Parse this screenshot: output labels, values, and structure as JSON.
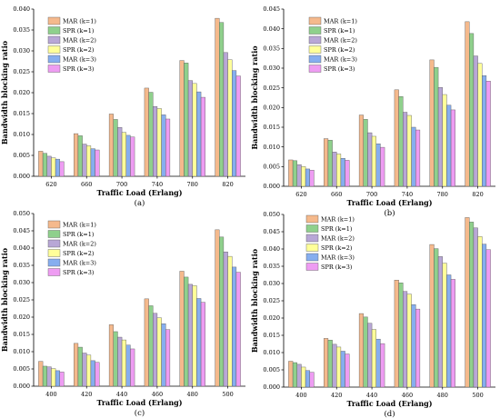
{
  "series_style": [
    {
      "name": "MAR (k=1)",
      "color": "#F5B98C"
    },
    {
      "name": "SPR (k=1)",
      "color": "#8FD08C"
    },
    {
      "name": "MAR (k=2)",
      "color": "#B8A7D6"
    },
    {
      "name": "SPR (k=2)",
      "color": "#FFFF99"
    },
    {
      "name": "MAR (k=3)",
      "color": "#86AEEF"
    },
    {
      "name": "SPR (k=3)",
      "color": "#EE9CF2"
    }
  ],
  "chart_data": [
    {
      "type": "bar",
      "panel_label": "(a)",
      "xlabel": "Traffic Load (Erlang)",
      "ylabel": "Bandwidth blocking ratio",
      "categories": [
        "620",
        "660",
        "700",
        "740",
        "780",
        "820"
      ],
      "ylim": [
        0,
        0.04
      ],
      "yticks": [
        "0.000",
        "0.005",
        "0.010",
        "0.015",
        "0.020",
        "0.025",
        "0.030",
        "0.035",
        "0.040"
      ],
      "legend_position": "top-left",
      "series": [
        {
          "name": "MAR (k=1)",
          "values": [
            0.006,
            0.0102,
            0.0149,
            0.0211,
            0.0277,
            0.0378
          ]
        },
        {
          "name": "SPR (k=1)",
          "values": [
            0.0055,
            0.0097,
            0.0136,
            0.0201,
            0.0271,
            0.0368
          ]
        },
        {
          "name": "MAR (k=2)",
          "values": [
            0.0048,
            0.0077,
            0.0117,
            0.0167,
            0.0229,
            0.0296
          ]
        },
        {
          "name": "SPR (k=2)",
          "values": [
            0.0044,
            0.0073,
            0.0105,
            0.0162,
            0.0222,
            0.0279
          ]
        },
        {
          "name": "MAR (k=3)",
          "values": [
            0.0041,
            0.0066,
            0.0098,
            0.0147,
            0.0202,
            0.0253
          ]
        },
        {
          "name": "SPR (k=3)",
          "values": [
            0.0035,
            0.0063,
            0.0094,
            0.0137,
            0.0189,
            0.024
          ]
        }
      ]
    },
    {
      "type": "bar",
      "panel_label": "(b)",
      "xlabel": "Traffic Load (Erlang)",
      "ylabel": "Bandwidth blocking ratio",
      "categories": [
        "620",
        "660",
        "700",
        "740",
        "780",
        "820"
      ],
      "ylim": [
        0,
        0.045
      ],
      "yticks": [
        "0.000",
        "0.005",
        "0.010",
        "0.015",
        "0.020",
        "0.025",
        "0.030",
        "0.035",
        "0.040",
        "0.045"
      ],
      "legend_position": "top-left",
      "series": [
        {
          "name": "MAR (k=1)",
          "values": [
            0.0067,
            0.0121,
            0.0181,
            0.0245,
            0.0321,
            0.0418
          ]
        },
        {
          "name": "SPR (k=1)",
          "values": [
            0.0065,
            0.0117,
            0.017,
            0.0228,
            0.0302,
            0.0388
          ]
        },
        {
          "name": "MAR (k=2)",
          "values": [
            0.0055,
            0.0087,
            0.0136,
            0.0188,
            0.0251,
            0.0331
          ]
        },
        {
          "name": "SPR (k=2)",
          "values": [
            0.005,
            0.0082,
            0.0127,
            0.018,
            0.0233,
            0.0312
          ]
        },
        {
          "name": "MAR (k=3)",
          "values": [
            0.0044,
            0.0071,
            0.0108,
            0.015,
            0.0206,
            0.0281
          ]
        },
        {
          "name": "SPR (k=3)",
          "values": [
            0.0041,
            0.0066,
            0.0099,
            0.0143,
            0.0194,
            0.0267
          ]
        }
      ]
    },
    {
      "type": "bar",
      "panel_label": "(c)",
      "xlabel": "Traffic Load (Erlang)",
      "ylabel": "Bandwidth blocking ratio",
      "categories": [
        "400",
        "420",
        "440",
        "460",
        "480",
        "500"
      ],
      "ylim": [
        0,
        0.05
      ],
      "yticks": [
        "0.000",
        "0.005",
        "0.010",
        "0.015",
        "0.020",
        "0.025",
        "0.030",
        "0.035",
        "0.040",
        "0.045",
        "0.050"
      ],
      "legend_position": "top-left",
      "series": [
        {
          "name": "MAR (k=1)",
          "values": [
            0.0072,
            0.0124,
            0.0178,
            0.0253,
            0.0333,
            0.0453
          ]
        },
        {
          "name": "SPR (k=1)",
          "values": [
            0.0058,
            0.0113,
            0.0158,
            0.0233,
            0.0316,
            0.0432
          ]
        },
        {
          "name": "MAR (k=2)",
          "values": [
            0.0056,
            0.0096,
            0.0142,
            0.0211,
            0.0295,
            0.0389
          ]
        },
        {
          "name": "SPR (k=2)",
          "values": [
            0.0051,
            0.009,
            0.0134,
            0.0198,
            0.0291,
            0.0376
          ]
        },
        {
          "name": "MAR (k=3)",
          "values": [
            0.0045,
            0.0074,
            0.0119,
            0.0181,
            0.0254,
            0.0345
          ]
        },
        {
          "name": "SPR (k=3)",
          "values": [
            0.0041,
            0.0069,
            0.0108,
            0.0164,
            0.0243,
            0.033
          ]
        }
      ]
    },
    {
      "type": "bar",
      "panel_label": "(d)",
      "xlabel": "Traffic Load (Erlang)",
      "ylabel": "Bandwidth blocking ratio",
      "categories": [
        "400",
        "420",
        "440",
        "460",
        "480",
        "500"
      ],
      "ylim": [
        0,
        0.05
      ],
      "yticks": [
        "0.000",
        "0.005",
        "0.010",
        "0.015",
        "0.020",
        "0.025",
        "0.030",
        "0.035",
        "0.040",
        "0.045",
        "0.050"
      ],
      "legend_position": "top-left",
      "series": [
        {
          "name": "MAR (k=1)",
          "values": [
            0.0075,
            0.0141,
            0.0213,
            0.031,
            0.0413,
            0.0491
          ]
        },
        {
          "name": "SPR (k=1)",
          "values": [
            0.0071,
            0.0136,
            0.0203,
            0.0302,
            0.0401,
            0.0478
          ]
        },
        {
          "name": "MAR (k=2)",
          "values": [
            0.0066,
            0.0124,
            0.0185,
            0.0277,
            0.0378,
            0.0461
          ]
        },
        {
          "name": "SPR (k=2)",
          "values": [
            0.0058,
            0.0116,
            0.0167,
            0.0269,
            0.0359,
            0.0436
          ]
        },
        {
          "name": "MAR (k=3)",
          "values": [
            0.0048,
            0.0104,
            0.0139,
            0.0239,
            0.0325,
            0.0414
          ]
        },
        {
          "name": "SPR (k=3)",
          "values": [
            0.0043,
            0.0096,
            0.0126,
            0.0226,
            0.0312,
            0.0398
          ]
        }
      ]
    }
  ]
}
